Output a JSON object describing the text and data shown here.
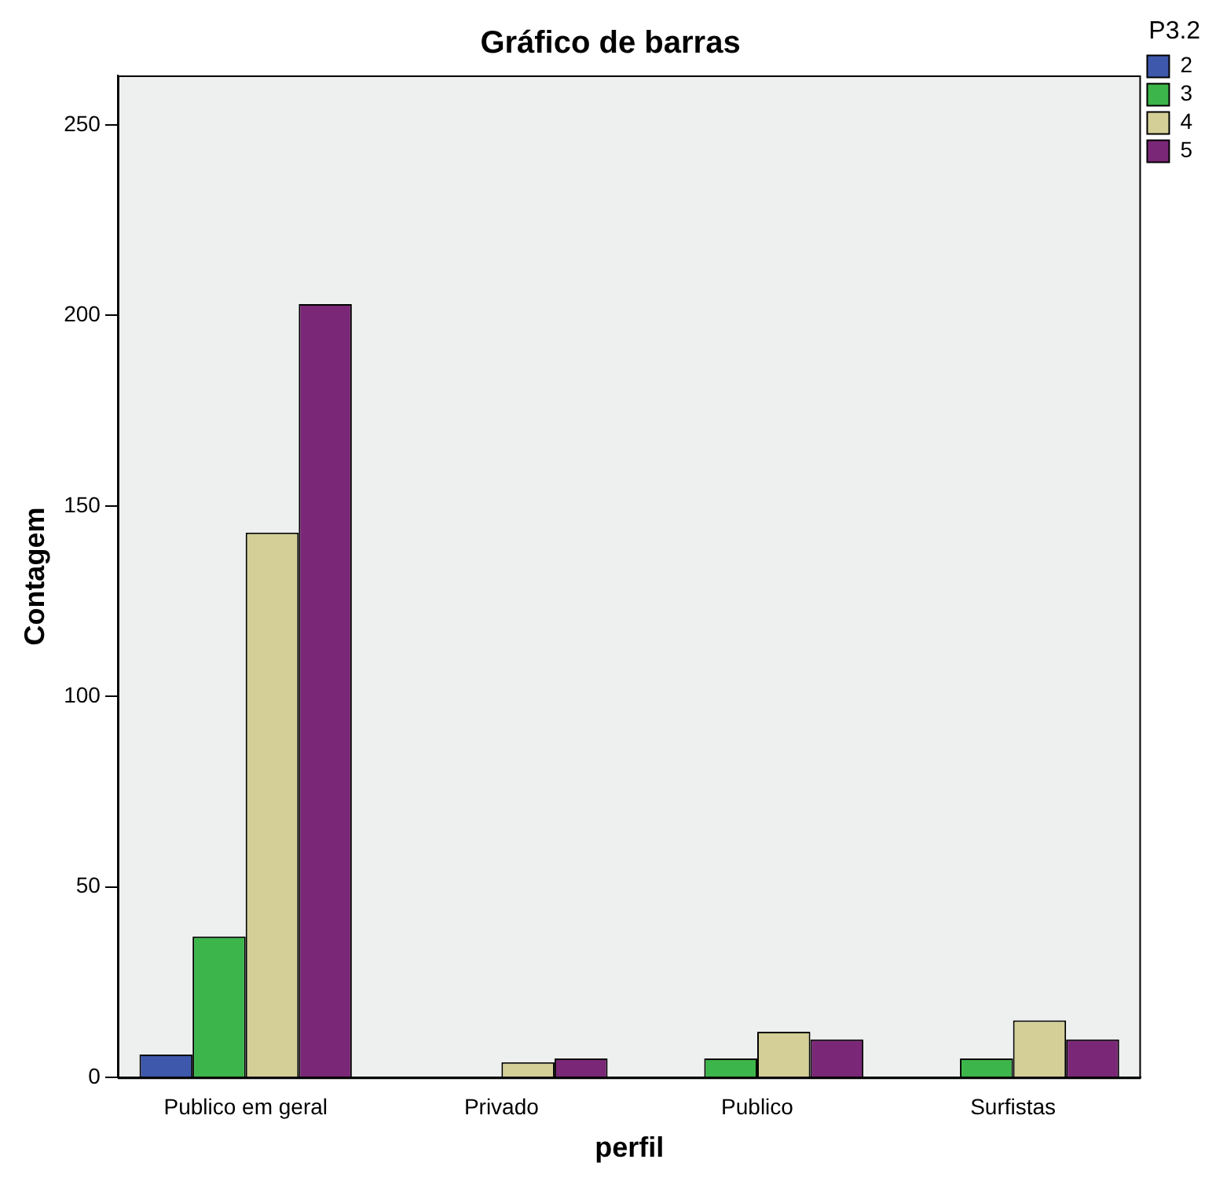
{
  "chart_data": {
    "type": "bar",
    "title": "Gráfico de barras",
    "xlabel": "perfil",
    "ylabel": "Contagem",
    "legend_title": "P3.2",
    "categories": [
      "Publico em geral",
      "Privado",
      "Publico",
      "Surfistas"
    ],
    "series": [
      {
        "name": "2",
        "color": "#3e58ac",
        "values": [
          6,
          null,
          null,
          null
        ]
      },
      {
        "name": "3",
        "color": "#3cb54a",
        "values": [
          37,
          null,
          5,
          5
        ]
      },
      {
        "name": "4",
        "color": "#d4cf97",
        "values": [
          143,
          4,
          12,
          15
        ]
      },
      {
        "name": "5",
        "color": "#7b2777",
        "values": [
          203,
          5,
          10,
          10
        ]
      }
    ],
    "ylim": [
      0,
      263
    ],
    "yticks": [
      0,
      50,
      100,
      150,
      200,
      250
    ],
    "grid": false,
    "legend": "top right"
  }
}
